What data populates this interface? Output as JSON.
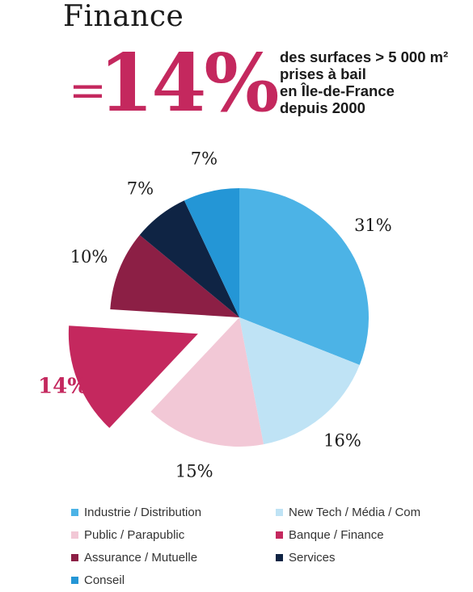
{
  "header": {
    "title": "Finance",
    "equals": "=",
    "big_value": "14%",
    "description_lines": [
      "des surfaces > 5 000 m²",
      "prises à bail",
      "en Île-de-France",
      "depuis 2000"
    ]
  },
  "chart_data": {
    "type": "pie",
    "title": "Finance",
    "highlighted": "Banque / Finance",
    "slices": [
      {
        "label": "Industrie / Distribution",
        "value": 31,
        "display": "31%",
        "color": "#4cb3e6"
      },
      {
        "label": "New Tech / Média / Com",
        "value": 16,
        "display": "16%",
        "color": "#bfe3f5"
      },
      {
        "label": "Public / Parapublic",
        "value": 15,
        "display": "15%",
        "color": "#f2c8d6"
      },
      {
        "label": "Banque / Finance",
        "value": 14,
        "display": "14%",
        "color": "#c4285e"
      },
      {
        "label": "Assurance / Mutuelle",
        "value": 10,
        "display": "10%",
        "color": "#8c1f45"
      },
      {
        "label": "Services",
        "value": 7,
        "display": "7%",
        "color": "#0f2444"
      },
      {
        "label": "Conseil",
        "value": 7,
        "display": "7%",
        "color": "#2496d6"
      }
    ],
    "legend_position": "bottom"
  }
}
